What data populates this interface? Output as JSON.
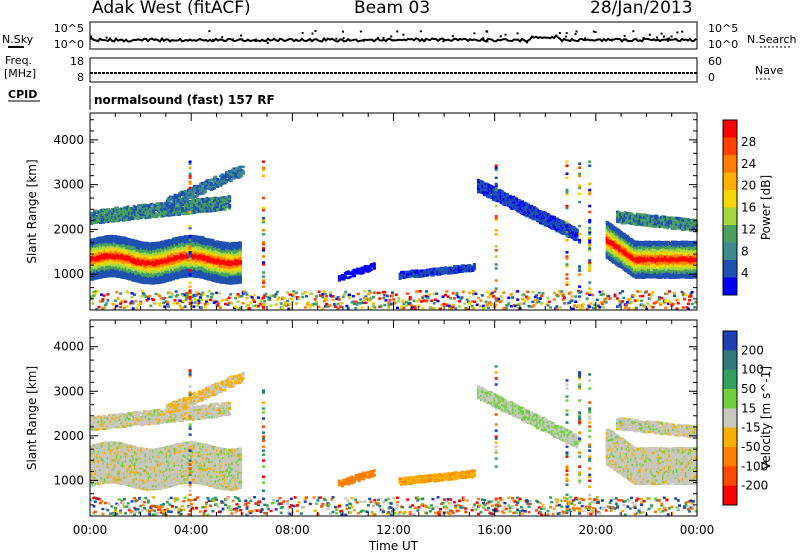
{
  "header": {
    "station": "Adak West (fitACF)",
    "beam": "Beam 03",
    "date": "28/Jan/2013"
  },
  "top_panels": {
    "nsky_label": "N.Sky",
    "nsky_ticks": [
      "10^5",
      "10^0"
    ],
    "nsky_right_ticks": [
      "10^5",
      "10^0"
    ],
    "nsearch_label": "N.Search",
    "freq_label_line1": "Freq.",
    "freq_label_line2": "[MHz]",
    "freq_ticks": [
      "18",
      "8"
    ],
    "nave_ticks": [
      "60",
      "0"
    ],
    "nave_label": "Nave",
    "cpid_label": "CPID",
    "cpid_text": "normalsound (fast) 157 RF"
  },
  "power_colorbar": {
    "title": "Power [dB]",
    "ticks": [
      "28",
      "24",
      "20",
      "16",
      "12",
      "8",
      "4"
    ],
    "colors": [
      "#ff0000",
      "#ff4000",
      "#ff8000",
      "#ffb000",
      "#f6d800",
      "#a6d840",
      "#48a060",
      "#3c8c8c",
      "#2050b0",
      "#0000ff"
    ]
  },
  "velocity_colorbar": {
    "title": "Velocity [m s^-1]",
    "ticks": [
      "200",
      "100",
      "50",
      "15",
      "-15",
      "-50",
      "-100",
      "-200"
    ],
    "colors": [
      "#2040b0",
      "#2f7a7a",
      "#34a060",
      "#70d040",
      "#c8c8c0",
      "#f7b000",
      "#ff8000",
      "#ff4800",
      "#ff0000"
    ]
  },
  "chart_data": [
    {
      "type": "heatmap",
      "title": "",
      "ylabel": "Slant Range [km]",
      "xlabel": "Time UT",
      "ylim": [
        200,
        4600
      ],
      "yticks": [
        "1000",
        "2000",
        "3000",
        "4000"
      ],
      "xticks": [
        "00:00",
        "04:00",
        "08:00",
        "12:00",
        "16:00",
        "20:00",
        "00:00"
      ],
      "xlim_hours": [
        0,
        24
      ],
      "colorbar": "Power [dB]"
    },
    {
      "type": "heatmap",
      "title": "",
      "ylabel": "Slant Range [km]",
      "xlabel": "Time UT",
      "ylim": [
        200,
        4600
      ],
      "yticks": [
        "1000",
        "2000",
        "3000",
        "4000"
      ],
      "xticks": [
        "00:00",
        "04:00",
        "08:00",
        "12:00",
        "16:00",
        "20:00",
        "00:00"
      ],
      "xlim_hours": [
        0,
        24
      ],
      "colorbar": "Velocity [m s^-1]"
    }
  ]
}
